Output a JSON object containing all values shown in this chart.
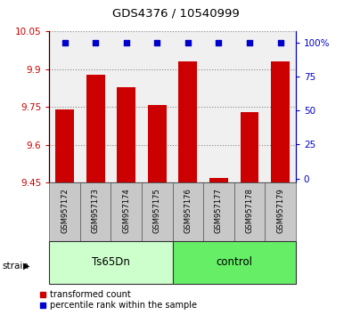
{
  "title": "GDS4376 / 10540999",
  "samples": [
    "GSM957172",
    "GSM957173",
    "GSM957174",
    "GSM957175",
    "GSM957176",
    "GSM957177",
    "GSM957178",
    "GSM957179"
  ],
  "bar_values": [
    9.74,
    9.88,
    9.83,
    9.76,
    9.93,
    9.47,
    9.73,
    9.93
  ],
  "percentile_values": [
    100,
    100,
    100,
    100,
    100,
    100,
    100,
    100
  ],
  "y_min": 9.45,
  "y_max": 10.05,
  "y_ticks": [
    9.45,
    9.6,
    9.75,
    9.9,
    10.05
  ],
  "y_tick_labels": [
    "9.45",
    "9.6",
    "9.75",
    "9.9",
    "10.05"
  ],
  "y2_ticks": [
    0,
    25,
    50,
    75,
    100
  ],
  "y2_tick_labels": [
    "0",
    "25",
    "50",
    "75",
    "100%"
  ],
  "bar_color": "#cc0000",
  "percentile_color": "#0000cc",
  "groups": [
    {
      "label": "Ts65Dn",
      "start": 0,
      "end": 4,
      "color": "#ccffcc"
    },
    {
      "label": "control",
      "start": 4,
      "end": 8,
      "color": "#66ee66"
    }
  ],
  "legend_items": [
    {
      "label": "transformed count",
      "color": "#cc0000"
    },
    {
      "label": "percentile rank within the sample",
      "color": "#0000cc"
    }
  ],
  "tick_label_color_left": "#cc0000",
  "tick_label_color_right": "#0000cc",
  "plot_bg_color": "#f0f0f0",
  "sample_box_color": "#c8c8c8",
  "figsize": [
    3.95,
    3.54
  ],
  "dpi": 100
}
